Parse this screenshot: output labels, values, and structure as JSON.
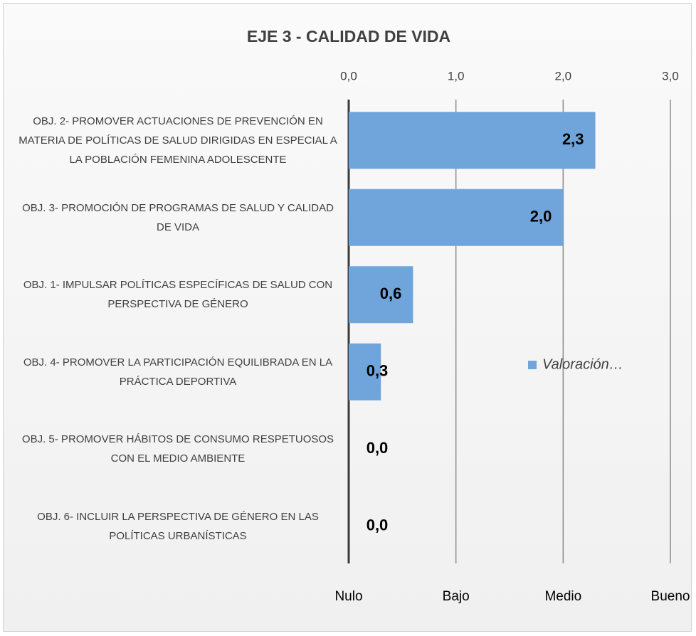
{
  "chart_data": {
    "type": "barh",
    "title": "EJE 3 - CALIDAD DE VIDA",
    "categories": [
      "OBJ. 2- PROMOVER ACTUACIONES DE PREVENCIÓN EN MATERIA DE POLÍTICAS DE SALUD DIRIGIDAS EN ESPECIAL A LA POBLACIÓN FEMENINA ADOLESCENTE",
      "OBJ. 3- PROMOCIÓN DE PROGRAMAS DE SALUD Y CALIDAD DE VIDA",
      "OBJ. 1- IMPULSAR POLÍTICAS ESPECÍFICAS DE SALUD CON PERSPECTIVA DE GÉNERO",
      "OBJ. 4- PROMOVER LA PARTICIPACIÓN EQUILIBRADA EN LA PRÁCTICA DEPORTIVA",
      "OBJ. 5- PROMOVER HÁBITOS DE CONSUMO RESPETUOSOS CON EL MEDIO AMBIENTE",
      "OBJ. 6- INCLUIR LA PERSPECTIVA DE GÉNERO EN LAS POLÍTICAS URBANÍSTICAS"
    ],
    "series": [
      {
        "name": "Valoración…",
        "color": "#6fa5da",
        "values": [
          2.3,
          2.0,
          0.6,
          0.3,
          0.0,
          0.0
        ],
        "value_labels": [
          "2,3",
          "2,0",
          "0,6",
          "0,3",
          "0,0",
          "0,0"
        ]
      }
    ],
    "xlim": [
      0,
      3
    ],
    "xticks": [
      {
        "value": 0,
        "label": "0,0"
      },
      {
        "value": 1,
        "label": "1,0"
      },
      {
        "value": 2,
        "label": "2,0"
      },
      {
        "value": 3,
        "label": "3,0"
      }
    ],
    "bottom_labels": [
      "Nulo",
      "Bajo",
      "Medio",
      "Bueno"
    ],
    "grid": true,
    "legend": "right"
  }
}
